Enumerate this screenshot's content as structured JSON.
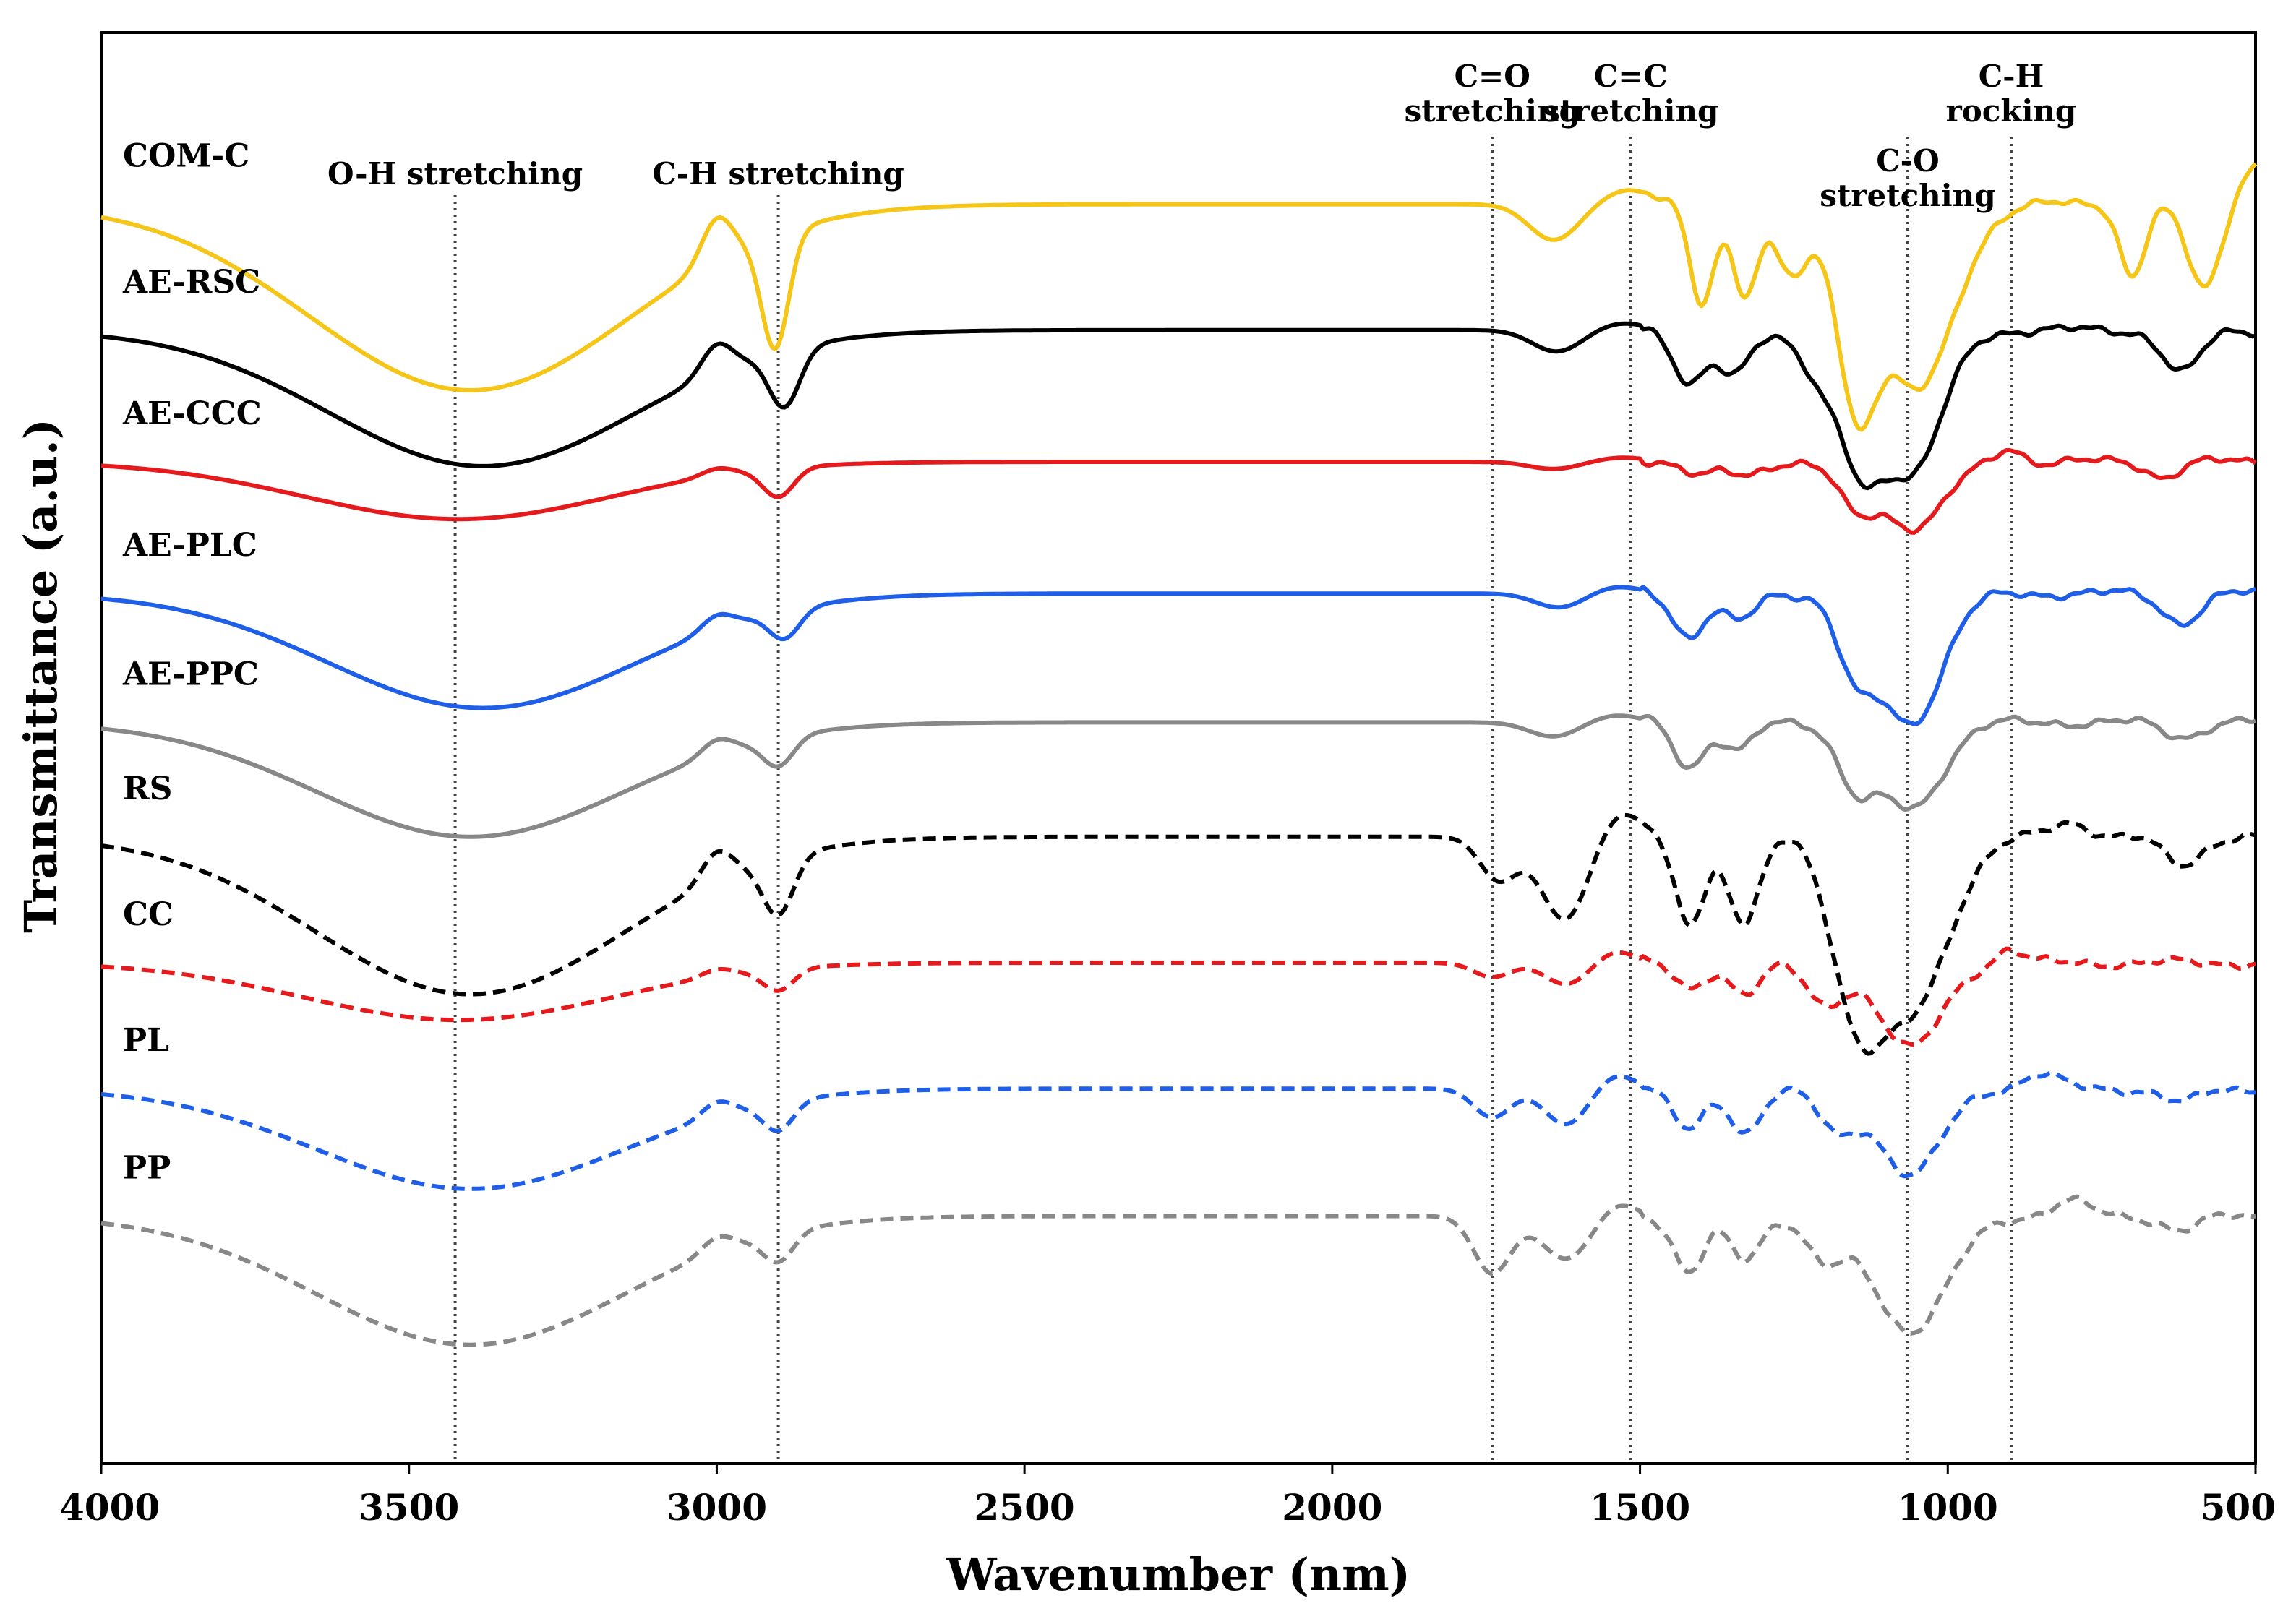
{
  "chart_data": {
    "type": "line",
    "title": "",
    "xlabel": "Wavenumber (nm)",
    "ylabel": "Transmittance (a.u.)",
    "xlim": [
      4000,
      500
    ],
    "ylim": [
      0,
      100
    ],
    "xticks": [
      "4000",
      "3500",
      "3000",
      "2500",
      "2000",
      "1500",
      "1000",
      "500"
    ],
    "grid": false,
    "annotations": [
      {
        "x": 3425,
        "lines": [
          "O-H stretching"
        ]
      },
      {
        "x": 2900,
        "lines": [
          "C-H stretching"
        ]
      },
      {
        "x": 1740,
        "lines": [
          "C=O",
          "stretching"
        ]
      },
      {
        "x": 1515,
        "lines": [
          "C=C",
          "stretching"
        ]
      },
      {
        "x": 1065,
        "lines": [
          "C-O",
          "stretching"
        ]
      },
      {
        "x": 897,
        "lines": [
          "C-H",
          "rocking"
        ]
      }
    ],
    "series": [
      {
        "name": "COM-C",
        "color": "#F5C518",
        "dash": "solid",
        "base": 88.0,
        "bands": [
          [
            3400,
            260,
            13
          ],
          [
            2905,
            22,
            8
          ],
          [
            3000,
            25,
            -3
          ],
          [
            1640,
            40,
            2.5
          ],
          [
            1520,
            40,
            -1
          ],
          [
            1400,
            20,
            7
          ],
          [
            1330,
            20,
            6
          ],
          [
            1250,
            30,
            5
          ],
          [
            1150,
            30,
            12
          ],
          [
            1050,
            60,
            13
          ],
          [
            700,
            20,
            5
          ],
          [
            580,
            30,
            7
          ],
          [
            500,
            60,
            -3
          ]
        ]
      },
      {
        "name": "AE-RSC",
        "color": "#000000",
        "dash": "solid",
        "base": 79.2,
        "bands": [
          [
            3380,
            250,
            9.5
          ],
          [
            2890,
            25,
            4
          ],
          [
            3000,
            25,
            -2
          ],
          [
            1635,
            40,
            1.5
          ],
          [
            1530,
            40,
            -0.5
          ],
          [
            1420,
            25,
            4
          ],
          [
            1350,
            25,
            3
          ],
          [
            1200,
            35,
            4
          ],
          [
            1140,
            30,
            7
          ],
          [
            1060,
            50,
            10
          ],
          [
            620,
            30,
            3
          ]
        ]
      },
      {
        "name": "AE-CCC",
        "color": "#E41A1C",
        "dash": "solid",
        "base": 70.0,
        "bands": [
          [
            3420,
            250,
            4
          ],
          [
            2900,
            25,
            2
          ],
          [
            3000,
            25,
            -0.5
          ],
          [
            1640,
            40,
            0.5
          ],
          [
            1530,
            40,
            -0.3
          ],
          [
            1400,
            25,
            1
          ],
          [
            1330,
            25,
            1
          ],
          [
            1150,
            30,
            3
          ],
          [
            1055,
            50,
            4.5
          ],
          [
            900,
            20,
            -1
          ],
          [
            650,
            25,
            1
          ]
        ]
      },
      {
        "name": "AE-PLC",
        "color": "#1F5FE8",
        "dash": "solid",
        "base": 60.8,
        "bands": [
          [
            3380,
            250,
            8
          ],
          [
            2890,
            25,
            2
          ],
          [
            3000,
            25,
            -1
          ],
          [
            1630,
            40,
            1
          ],
          [
            1540,
            40,
            -0.5
          ],
          [
            1420,
            25,
            3
          ],
          [
            1340,
            25,
            2
          ],
          [
            1150,
            30,
            5
          ],
          [
            1060,
            50,
            9
          ],
          [
            620,
            30,
            2
          ]
        ]
      },
      {
        "name": "AE-PPC",
        "color": "#888888",
        "dash": "solid",
        "base": 51.8,
        "bands": [
          [
            3400,
            250,
            8
          ],
          [
            2900,
            25,
            2
          ],
          [
            3000,
            25,
            -1
          ],
          [
            1640,
            40,
            1
          ],
          [
            1540,
            40,
            -0.5
          ],
          [
            1420,
            25,
            3
          ],
          [
            1340,
            25,
            2
          ],
          [
            1150,
            30,
            4
          ],
          [
            1060,
            50,
            6
          ],
          [
            620,
            30,
            1
          ]
        ]
      },
      {
        "name": "RS",
        "color": "#000000",
        "dash": "dashed",
        "base": 43.8,
        "bands": [
          [
            3400,
            250,
            11
          ],
          [
            2900,
            25,
            4
          ],
          [
            3000,
            25,
            -2
          ],
          [
            1730,
            30,
            3
          ],
          [
            1620,
            40,
            6
          ],
          [
            1540,
            40,
            -2
          ],
          [
            1420,
            25,
            6
          ],
          [
            1330,
            25,
            6
          ],
          [
            1150,
            40,
            10
          ],
          [
            1060,
            60,
            12
          ],
          [
            800,
            30,
            -1
          ],
          [
            620,
            30,
            2
          ]
        ]
      },
      {
        "name": "CC",
        "color": "#E41A1C",
        "dash": "dashed",
        "base": 35.0,
        "bands": [
          [
            3420,
            250,
            4
          ],
          [
            2900,
            25,
            1.5
          ],
          [
            3000,
            25,
            -0.5
          ],
          [
            1740,
            30,
            1
          ],
          [
            1620,
            35,
            1.5
          ],
          [
            1540,
            30,
            -0.8
          ],
          [
            1420,
            25,
            2
          ],
          [
            1330,
            25,
            2
          ],
          [
            1200,
            30,
            3
          ],
          [
            1060,
            50,
            6
          ],
          [
            900,
            20,
            -1
          ]
        ]
      },
      {
        "name": "PL",
        "color": "#1F5FE8",
        "dash": "dashed",
        "base": 26.2,
        "bands": [
          [
            3400,
            250,
            7
          ],
          [
            2900,
            25,
            2
          ],
          [
            3000,
            25,
            -1
          ],
          [
            1740,
            30,
            2
          ],
          [
            1620,
            35,
            2.5
          ],
          [
            1540,
            30,
            -1
          ],
          [
            1420,
            25,
            3
          ],
          [
            1330,
            25,
            3
          ],
          [
            1180,
            30,
            3
          ],
          [
            1060,
            50,
            6
          ],
          [
            850,
            30,
            -1
          ],
          [
            620,
            30,
            1
          ]
        ]
      },
      {
        "name": "PP",
        "color": "#888888",
        "dash": "dashed",
        "base": 17.3,
        "bands": [
          [
            3400,
            250,
            9
          ],
          [
            2900,
            25,
            2
          ],
          [
            3000,
            25,
            -1
          ],
          [
            1740,
            30,
            4
          ],
          [
            1620,
            40,
            3
          ],
          [
            1540,
            30,
            -1
          ],
          [
            1420,
            25,
            4
          ],
          [
            1330,
            25,
            3
          ],
          [
            1200,
            30,
            3
          ],
          [
            1060,
            60,
            8
          ],
          [
            800,
            30,
            -1
          ],
          [
            620,
            30,
            1
          ]
        ]
      }
    ]
  }
}
